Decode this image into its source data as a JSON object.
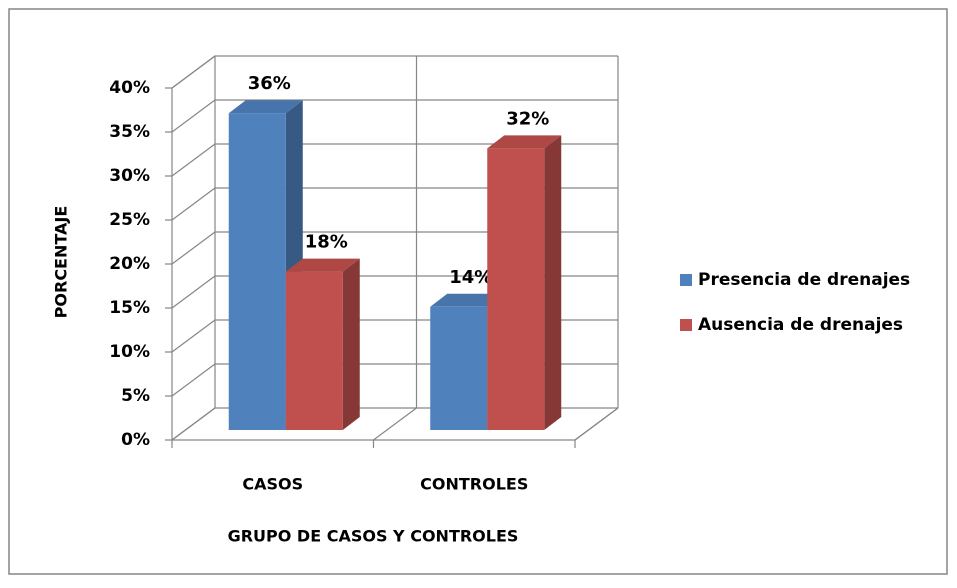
{
  "chart_data": {
    "type": "bar3d",
    "categories": [
      "CASOS",
      "CONTROLES"
    ],
    "series": [
      {
        "name": "Presencia de drenajes",
        "color": "#4f81bd",
        "values": [
          36,
          14
        ],
        "value_labels": [
          "36%",
          "14%"
        ]
      },
      {
        "name": "Ausencia de drenajes",
        "color": "#c0504d",
        "values": [
          18,
          32
        ],
        "value_labels": [
          "18%",
          "32%"
        ]
      }
    ],
    "ylim": [
      0,
      40
    ],
    "yticks": [
      {
        "value": 0,
        "label": "0%"
      },
      {
        "value": 5,
        "label": "5%"
      },
      {
        "value": 10,
        "label": "10%"
      },
      {
        "value": 15,
        "label": "15%"
      },
      {
        "value": 20,
        "label": "20%"
      },
      {
        "value": 25,
        "label": "25%"
      },
      {
        "value": 30,
        "label": "30%"
      },
      {
        "value": 35,
        "label": "35%"
      },
      {
        "value": 40,
        "label": "40%"
      }
    ],
    "xlabel": "GRUPO DE CASOS Y CONTROLES",
    "ylabel": "PORCENTAJE",
    "grid": true,
    "legend": "right"
  }
}
